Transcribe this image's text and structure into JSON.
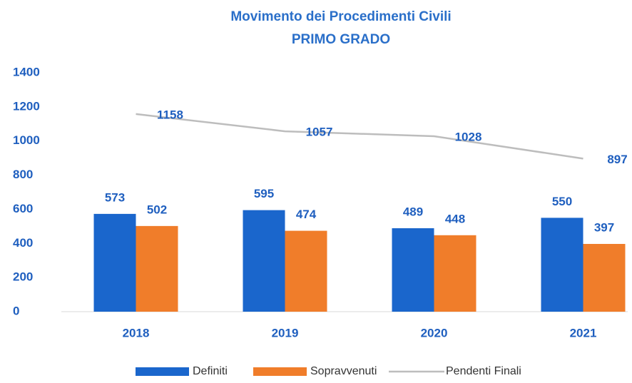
{
  "chart_data": {
    "type": "bar",
    "title": "Movimento dei Procedimenti Civili",
    "subtitle": "PRIMO GRADO",
    "categories": [
      "2018",
      "2019",
      "2020",
      "2021"
    ],
    "series": [
      {
        "name": "Definiti",
        "color": "#1a66cc",
        "values": [
          573,
          595,
          489,
          550
        ]
      },
      {
        "name": "Sopravvenuti",
        "color": "#f07d2a",
        "values": [
          502,
          474,
          448,
          397
        ]
      },
      {
        "name": "Pendenti Finali",
        "type": "line",
        "color": "#bdbdbd",
        "values": [
          1158,
          1057,
          1028,
          897
        ]
      }
    ],
    "ylim": [
      0,
      1400
    ],
    "yticks": [
      0,
      200,
      400,
      600,
      800,
      1000,
      1200,
      1400
    ],
    "grid": false
  }
}
